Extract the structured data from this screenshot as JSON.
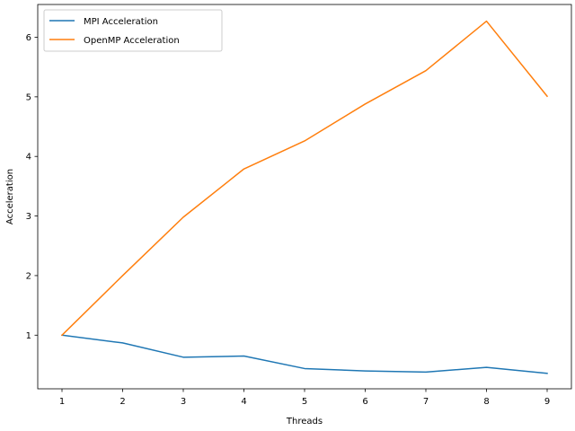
{
  "chart_data": {
    "type": "line",
    "title": "",
    "xlabel": "Threads",
    "ylabel": "Acceleration",
    "x": [
      1,
      2,
      3,
      4,
      5,
      6,
      7,
      8,
      9
    ],
    "xlim": [
      0.6,
      9.4
    ],
    "ylim": [
      0.1,
      6.55
    ],
    "xticks": [
      1,
      2,
      3,
      4,
      5,
      6,
      7,
      8,
      9
    ],
    "yticks": [
      1,
      2,
      3,
      4,
      5,
      6
    ],
    "grid": false,
    "legend_position": "upper-left",
    "series": [
      {
        "name": "MPI Acceleration",
        "color": "#1f77b4",
        "values": [
          1.0,
          0.87,
          0.63,
          0.65,
          0.44,
          0.4,
          0.38,
          0.46,
          0.36
        ]
      },
      {
        "name": "OpenMP Acceleration",
        "color": "#ff7f0e",
        "values": [
          1.0,
          2.0,
          2.98,
          3.79,
          4.26,
          4.88,
          5.44,
          6.27,
          5.01
        ]
      }
    ]
  }
}
